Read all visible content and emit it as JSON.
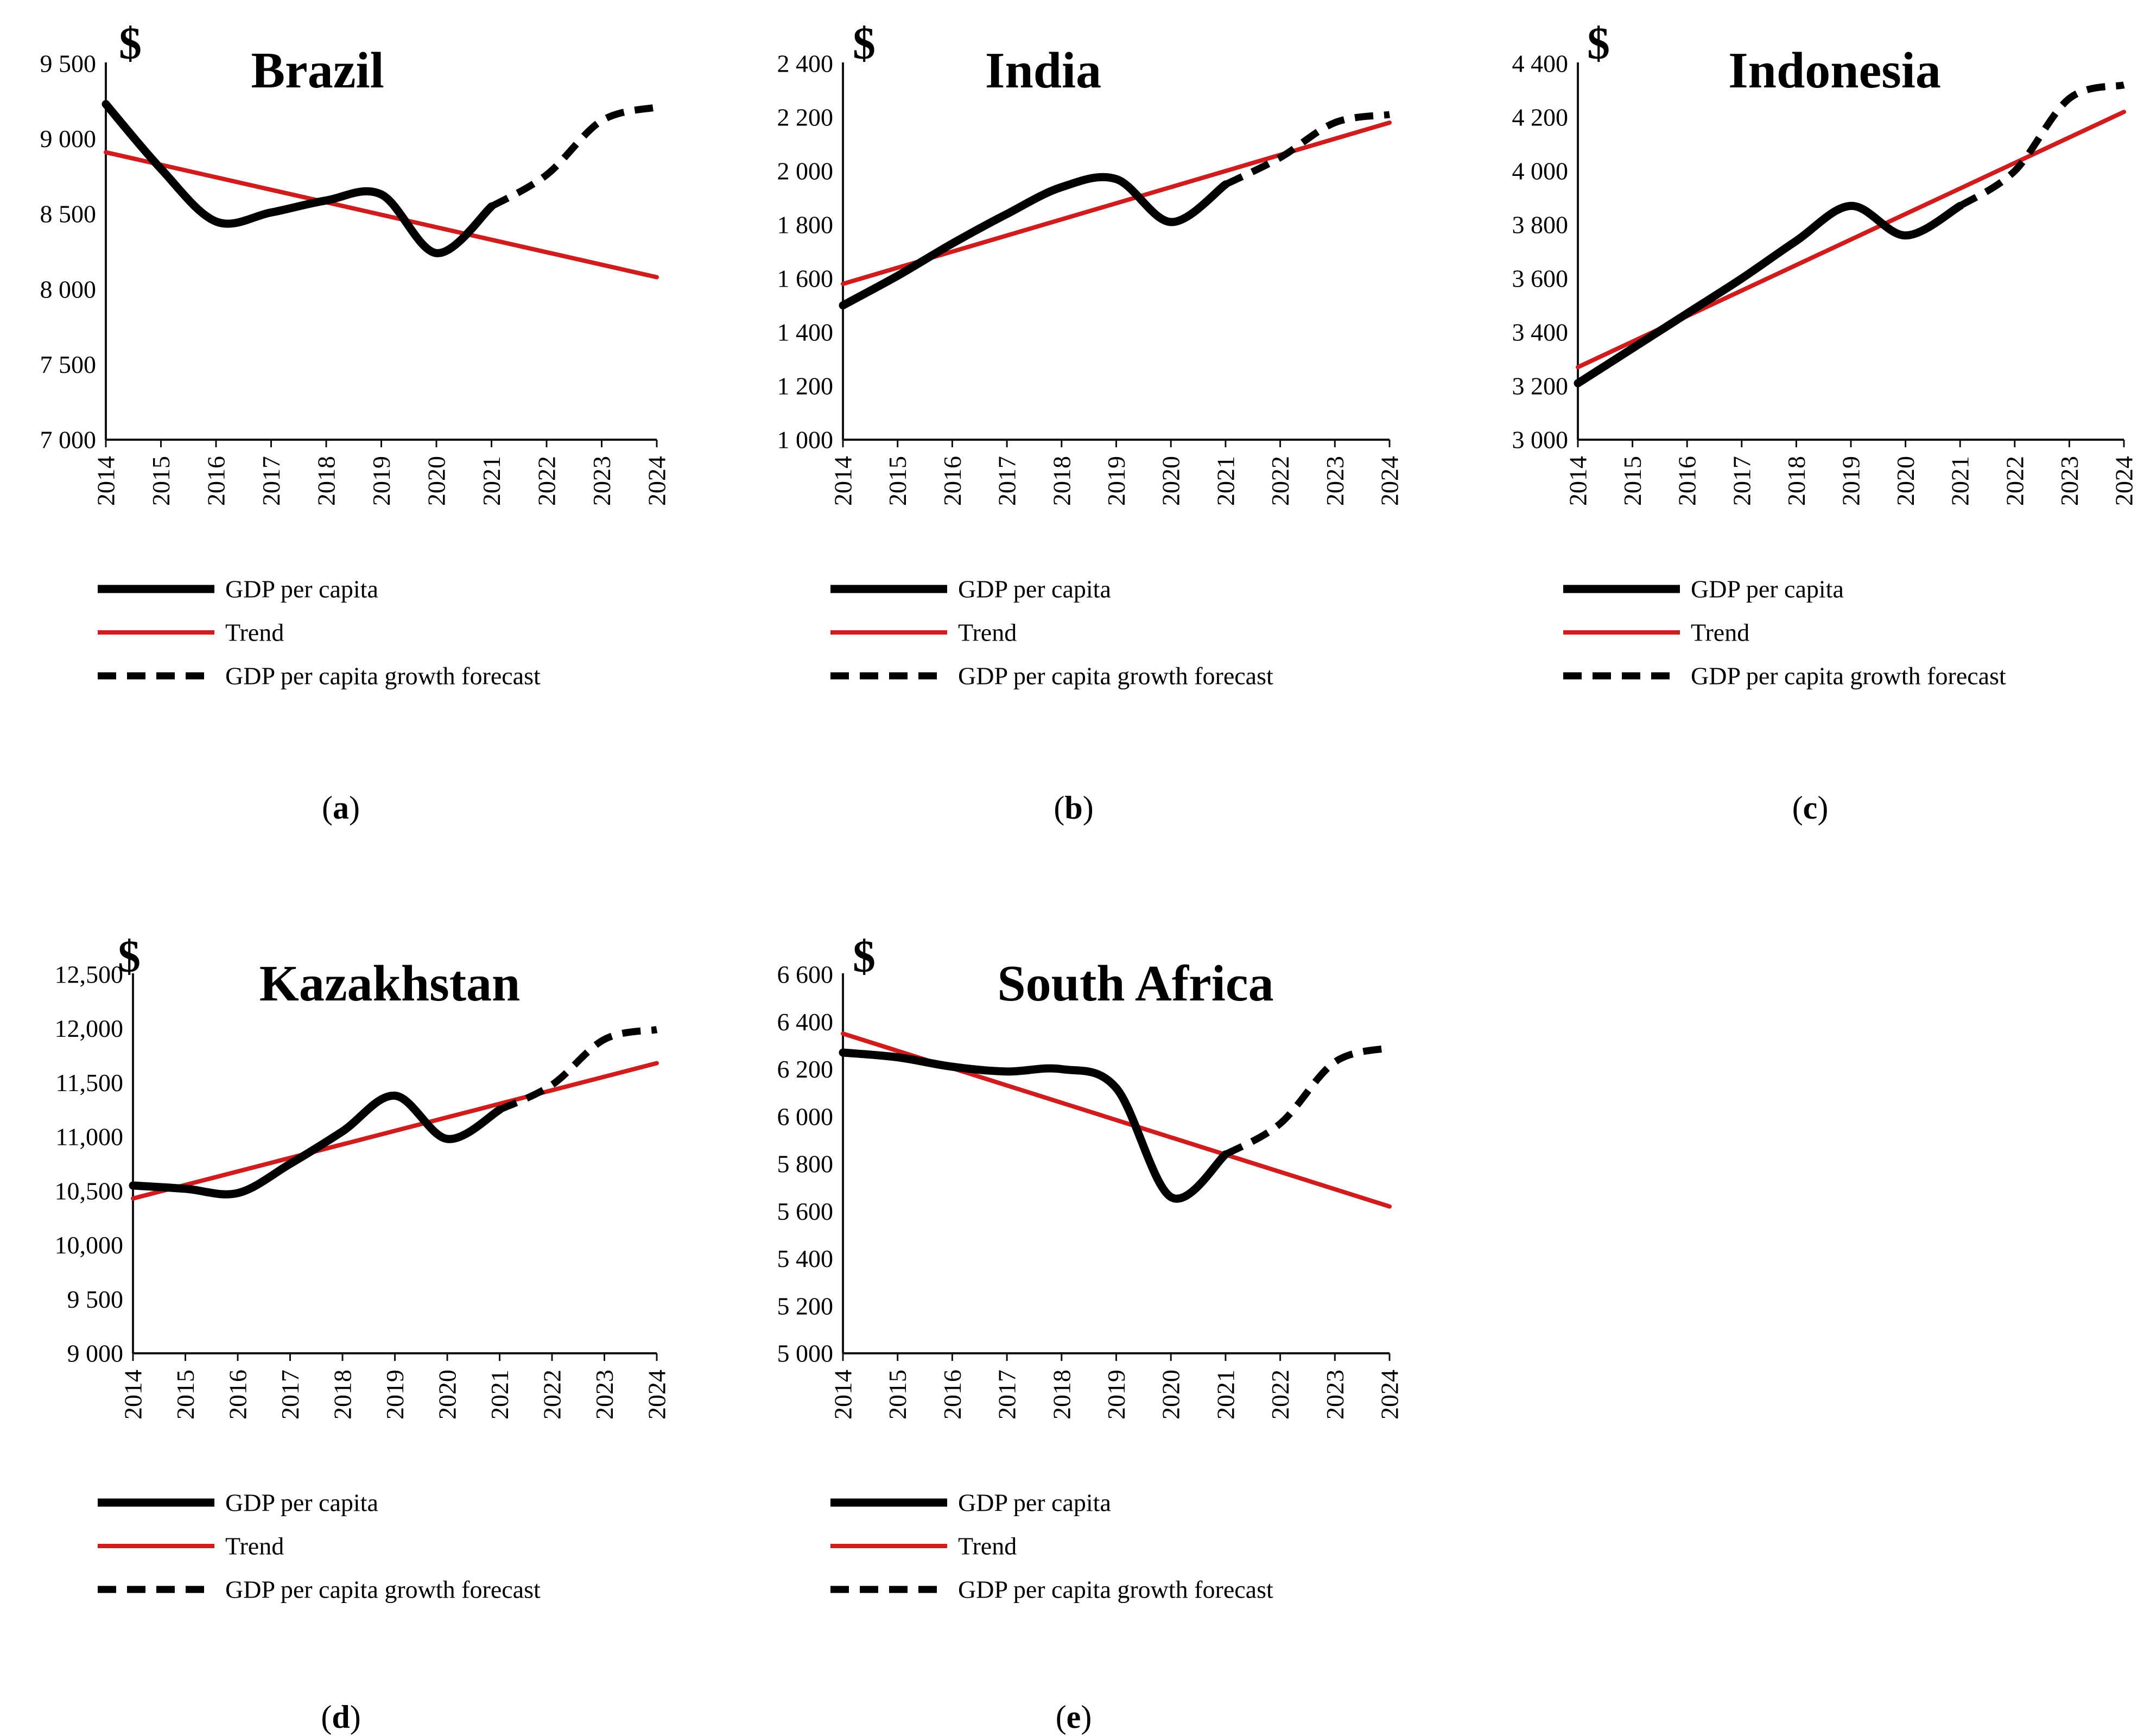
{
  "colors": {
    "gdp": "#000000",
    "trend": "#d01c1c",
    "forecast": "#000000",
    "axis": "#111111"
  },
  "legend": {
    "gdp_label": "GDP per capita",
    "trend_label": "Trend",
    "forecast_label": "GDP per capita growth forecast"
  },
  "chart_data": [
    {
      "type": "line",
      "panel_label": "(a)",
      "title": "Brazil",
      "unit": "$",
      "xlabel": "",
      "ylabel": "",
      "ylim": [
        7000,
        9500
      ],
      "y_ticks": [
        "7 000",
        "7 500",
        "8 000",
        "8 500",
        "9 000",
        "9 500"
      ],
      "x": [
        2014,
        2015,
        2016,
        2017,
        2018,
        2019,
        2020,
        2021,
        2022,
        2023,
        2024
      ],
      "series": [
        {
          "name": "GDP per capita",
          "x": [
            2014,
            2015,
            2016,
            2017,
            2018,
            2019,
            2020,
            2021
          ],
          "values": [
            9230,
            8800,
            8450,
            8510,
            8590,
            8630,
            8240,
            8550
          ]
        },
        {
          "name": "Trend",
          "x": [
            2014,
            2024
          ],
          "values": [
            8910,
            8080
          ]
        },
        {
          "name": "GDP per capita growth forecast",
          "x": [
            2021,
            2022,
            2023,
            2024
          ],
          "values": [
            8550,
            8760,
            9120,
            9210
          ]
        }
      ]
    },
    {
      "type": "line",
      "panel_label": "(b)",
      "title": "India",
      "unit": "$",
      "xlabel": "",
      "ylabel": "",
      "ylim": [
        1000,
        2400
      ],
      "y_ticks": [
        "1 000",
        "1 200",
        "1 400",
        "1 600",
        "1 800",
        "2 000",
        "2 200",
        "2 400"
      ],
      "x": [
        2014,
        2015,
        2016,
        2017,
        2018,
        2019,
        2020,
        2021,
        2022,
        2023,
        2024
      ],
      "series": [
        {
          "name": "GDP per capita",
          "x": [
            2014,
            2015,
            2016,
            2017,
            2018,
            2019,
            2020,
            2021
          ],
          "values": [
            1500,
            1610,
            1730,
            1840,
            1940,
            1970,
            1810,
            1950
          ]
        },
        {
          "name": "Trend",
          "x": [
            2014,
            2024
          ],
          "values": [
            1580,
            2180
          ]
        },
        {
          "name": "GDP per capita growth forecast",
          "x": [
            2021,
            2022,
            2023,
            2024
          ],
          "values": [
            1950,
            2050,
            2180,
            2210
          ]
        }
      ]
    },
    {
      "type": "line",
      "panel_label": "(c)",
      "title": "Indonesia",
      "unit": "$",
      "xlabel": "",
      "ylabel": "",
      "ylim": [
        3000,
        4400
      ],
      "y_ticks": [
        "3 000",
        "3 200",
        "3 400",
        "3 600",
        "3 800",
        "4 000",
        "4 200",
        "4 400"
      ],
      "x": [
        2014,
        2015,
        2016,
        2017,
        2018,
        2019,
        2020,
        2021,
        2022,
        2023,
        2024
      ],
      "series": [
        {
          "name": "GDP per capita",
          "x": [
            2014,
            2015,
            2016,
            2017,
            2018,
            2019,
            2020,
            2021
          ],
          "values": [
            3210,
            3340,
            3470,
            3600,
            3740,
            3870,
            3760,
            3870
          ]
        },
        {
          "name": "Trend",
          "x": [
            2014,
            2024
          ],
          "values": [
            3270,
            4220
          ]
        },
        {
          "name": "GDP per capita growth forecast",
          "x": [
            2021,
            2022,
            2023,
            2024
          ],
          "values": [
            3870,
            4000,
            4270,
            4320
          ]
        }
      ]
    },
    {
      "type": "line",
      "panel_label": "(d)",
      "title": "Kazakhstan",
      "unit": "$",
      "xlabel": "",
      "ylabel": "",
      "ylim": [
        9000,
        12500
      ],
      "y_ticks": [
        "9 000",
        "9 500",
        "10,000",
        "10,500",
        "11,000",
        "11,500",
        "12,000",
        "12,500"
      ],
      "x": [
        2014,
        2015,
        2016,
        2017,
        2018,
        2019,
        2020,
        2021,
        2022,
        2023,
        2024
      ],
      "series": [
        {
          "name": "GDP per capita",
          "x": [
            2014,
            2015,
            2016,
            2017,
            2018,
            2019,
            2020,
            2021
          ],
          "values": [
            10550,
            10520,
            10480,
            10750,
            11050,
            11380,
            10980,
            11250
          ]
        },
        {
          "name": "Trend",
          "x": [
            2014,
            2024
          ],
          "values": [
            10430,
            11680
          ]
        },
        {
          "name": "GDP per capita growth forecast",
          "x": [
            2021,
            2022,
            2023,
            2024
          ],
          "values": [
            11250,
            11480,
            11900,
            11990
          ]
        }
      ]
    },
    {
      "type": "line",
      "panel_label": "(e)",
      "title": "South Africa",
      "unit": "$",
      "xlabel": "",
      "ylabel": "",
      "ylim": [
        5000,
        6600
      ],
      "y_ticks": [
        "5 000",
        "5 200",
        "5 400",
        "5 600",
        "5 800",
        "6 000",
        "6 200",
        "6 400",
        "6 600"
      ],
      "x": [
        2014,
        2015,
        2016,
        2017,
        2018,
        2019,
        2020,
        2021,
        2022,
        2023,
        2024
      ],
      "series": [
        {
          "name": "GDP per capita",
          "x": [
            2014,
            2015,
            2016,
            2017,
            2018,
            2019,
            2020,
            2021
          ],
          "values": [
            6270,
            6250,
            6210,
            6190,
            6200,
            6120,
            5660,
            5840
          ]
        },
        {
          "name": "Trend",
          "x": [
            2014,
            2024
          ],
          "values": [
            6350,
            5620
          ]
        },
        {
          "name": "GDP per capita growth forecast",
          "x": [
            2021,
            2022,
            2023,
            2024
          ],
          "values": [
            5840,
            5970,
            6230,
            6290
          ]
        }
      ]
    }
  ]
}
